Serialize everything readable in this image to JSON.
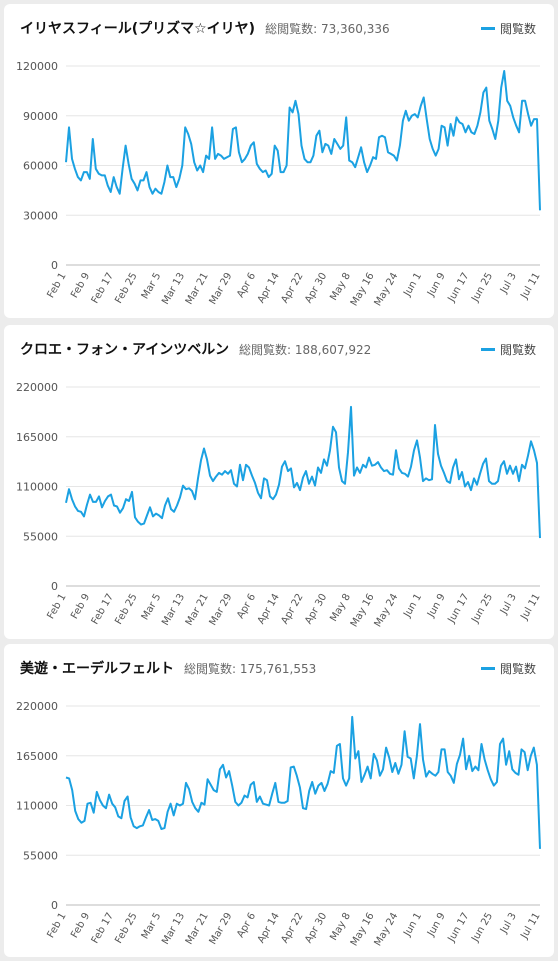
{
  "chart_data": [
    {
      "type": "line",
      "title": "イリヤスフィール(プリズマ☆イリヤ)",
      "total_label": "総閲覧数:",
      "total_value": "73,360,336",
      "legend": "閲覧数",
      "series_color": "#1ba1e2",
      "ylim": [
        0,
        120000
      ],
      "yticks": [
        "0",
        "30000",
        "60000",
        "90000",
        "120000"
      ],
      "xticks": [
        "Feb 1",
        "Feb 9",
        "Feb 17",
        "Feb 25",
        "Mar 5",
        "Mar 13",
        "Mar 21",
        "Mar 29",
        "Apr 6",
        "Apr 14",
        "Apr 22",
        "Apr 30",
        "May 8",
        "May 16",
        "May 24",
        "Jun 1",
        "Jun 9",
        "Jun 17",
        "Jun 25",
        "Jul 3",
        "Jul 11"
      ],
      "values": [
        62000,
        83000,
        64000,
        58000,
        53000,
        51000,
        56000,
        56000,
        52000,
        76000,
        58000,
        55000,
        54000,
        54000,
        48000,
        44000,
        53000,
        47000,
        43000,
        58000,
        72000,
        61000,
        52000,
        49000,
        45000,
        51000,
        51000,
        56000,
        47000,
        43000,
        46000,
        44000,
        43000,
        50000,
        60000,
        53000,
        53000,
        47000,
        52000,
        60000,
        83000,
        79000,
        73000,
        62000,
        57000,
        60000,
        56000,
        66000,
        64000,
        83000,
        64000,
        67000,
        66000,
        64000,
        65000,
        66000,
        82000,
        83000,
        68000,
        62000,
        64000,
        67000,
        72000,
        74000,
        61000,
        58000,
        56000,
        57000,
        53000,
        55000,
        72000,
        69000,
        56000,
        56000,
        60000,
        95000,
        92000,
        99000,
        91000,
        72000,
        64000,
        62000,
        62000,
        66000,
        78000,
        81000,
        68000,
        73000,
        72000,
        67000,
        76000,
        73000,
        70000,
        72000,
        89000,
        63000,
        62000,
        59000,
        65000,
        71000,
        62000,
        56000,
        60000,
        65000,
        64000,
        77000,
        78000,
        77000,
        68000,
        67000,
        66000,
        63000,
        72000,
        87000,
        93000,
        87000,
        90000,
        91000,
        89000,
        96000,
        101000,
        88000,
        76000,
        70000,
        66000,
        70000,
        84000,
        83000,
        72000,
        85000,
        78000,
        89000,
        86000,
        85000,
        80000,
        84000,
        80000,
        79000,
        84000,
        92000,
        104000,
        107000,
        87000,
        82000,
        76000,
        87000,
        107000,
        117000,
        99000,
        96000,
        89000,
        84000,
        80000,
        99000,
        99000,
        91000,
        84000,
        88000,
        88000,
        33000
      ]
    },
    {
      "type": "line",
      "title": "クロエ・フォン・アインツベルン",
      "total_label": "総閲覧数:",
      "total_value": "188,607,922",
      "legend": "閲覧数",
      "series_color": "#1ba1e2",
      "ylim": [
        0,
        220000
      ],
      "yticks": [
        "0",
        "55000",
        "110000",
        "165000",
        "220000"
      ],
      "xticks": [
        "Feb 1",
        "Feb 9",
        "Feb 17",
        "Feb 25",
        "Mar 5",
        "Mar 13",
        "Mar 21",
        "Mar 29",
        "Apr 6",
        "Apr 14",
        "Apr 22",
        "Apr 30",
        "May 8",
        "May 16",
        "May 24",
        "Jun 1",
        "Jun 9",
        "Jun 17",
        "Jun 25",
        "Jul 3",
        "Jul 11"
      ],
      "values": [
        92000,
        107000,
        96000,
        88000,
        83000,
        82000,
        77000,
        90000,
        101000,
        93000,
        93000,
        99000,
        87000,
        94000,
        99000,
        101000,
        89000,
        88000,
        81000,
        86000,
        96000,
        94000,
        104000,
        76000,
        71000,
        68000,
        69000,
        78000,
        87000,
        77000,
        80000,
        78000,
        75000,
        89000,
        97000,
        85000,
        82000,
        89000,
        98000,
        111000,
        107000,
        108000,
        105000,
        96000,
        119000,
        139000,
        152000,
        140000,
        122000,
        116000,
        121000,
        125000,
        123000,
        127000,
        124000,
        128000,
        113000,
        110000,
        134000,
        117000,
        134000,
        131000,
        122000,
        114000,
        103000,
        97000,
        119000,
        117000,
        99000,
        96000,
        101000,
        112000,
        132000,
        138000,
        127000,
        130000,
        109000,
        114000,
        106000,
        120000,
        127000,
        113000,
        121000,
        111000,
        131000,
        125000,
        140000,
        133000,
        150000,
        176000,
        170000,
        131000,
        116000,
        113000,
        148000,
        198000,
        122000,
        131000,
        125000,
        134000,
        131000,
        142000,
        133000,
        134000,
        137000,
        131000,
        127000,
        128000,
        124000,
        123000,
        150000,
        130000,
        125000,
        124000,
        121000,
        132000,
        150000,
        161000,
        142000,
        116000,
        119000,
        117000,
        118000,
        178000,
        146000,
        133000,
        125000,
        116000,
        114000,
        131000,
        140000,
        118000,
        126000,
        110000,
        115000,
        106000,
        119000,
        112000,
        124000,
        135000,
        141000,
        116000,
        113000,
        113000,
        116000,
        133000,
        138000,
        124000,
        133000,
        124000,
        132000,
        116000,
        134000,
        130000,
        144000,
        160000,
        150000,
        136000,
        53000
      ]
    },
    {
      "type": "line",
      "title": "美遊・エーデルフェルト",
      "total_label": "総閲覧数:",
      "total_value": "175,761,553",
      "legend": "閲覧数",
      "series_color": "#1ba1e2",
      "ylim": [
        0,
        220000
      ],
      "yticks": [
        "0",
        "55000",
        "110000",
        "165000",
        "220000"
      ],
      "xticks": [
        "Feb 1",
        "Feb 9",
        "Feb 17",
        "Feb 25",
        "Mar 5",
        "Mar 13",
        "Mar 21",
        "Mar 29",
        "Apr 6",
        "Apr 14",
        "Apr 22",
        "Apr 30",
        "May 8",
        "May 16",
        "May 24",
        "Jun 1",
        "Jun 9",
        "Jun 17",
        "Jun 25",
        "Jul 3",
        "Jul 11"
      ],
      "values": [
        141000,
        140000,
        127000,
        104000,
        95000,
        91000,
        93000,
        112000,
        113000,
        102000,
        125000,
        116000,
        110000,
        107000,
        122000,
        112000,
        108000,
        98000,
        96000,
        115000,
        120000,
        97000,
        87000,
        85000,
        87000,
        88000,
        97000,
        105000,
        94000,
        95000,
        93000,
        84000,
        85000,
        103000,
        112000,
        99000,
        112000,
        110000,
        112000,
        135000,
        128000,
        114000,
        107000,
        103000,
        113000,
        111000,
        139000,
        133000,
        127000,
        125000,
        150000,
        155000,
        141000,
        148000,
        132000,
        114000,
        110000,
        113000,
        121000,
        119000,
        133000,
        136000,
        114000,
        120000,
        112000,
        111000,
        110000,
        123000,
        135000,
        114000,
        113000,
        113000,
        115000,
        152000,
        153000,
        143000,
        130000,
        107000,
        106000,
        126000,
        136000,
        123000,
        132000,
        135000,
        126000,
        134000,
        148000,
        146000,
        176000,
        178000,
        140000,
        132000,
        140000,
        208000,
        162000,
        170000,
        136000,
        144000,
        153000,
        140000,
        167000,
        160000,
        143000,
        150000,
        174000,
        163000,
        147000,
        157000,
        145000,
        155000,
        192000,
        164000,
        162000,
        140000,
        165000,
        200000,
        161000,
        142000,
        148000,
        145000,
        143000,
        147000,
        172000,
        172000,
        147000,
        143000,
        135000,
        156000,
        166000,
        184000,
        150000,
        165000,
        148000,
        153000,
        149000,
        178000,
        161000,
        149000,
        139000,
        132000,
        136000,
        178000,
        184000,
        155000,
        170000,
        150000,
        146000,
        144000,
        172000,
        169000,
        149000,
        165000,
        174000,
        155000,
        62000
      ]
    }
  ]
}
